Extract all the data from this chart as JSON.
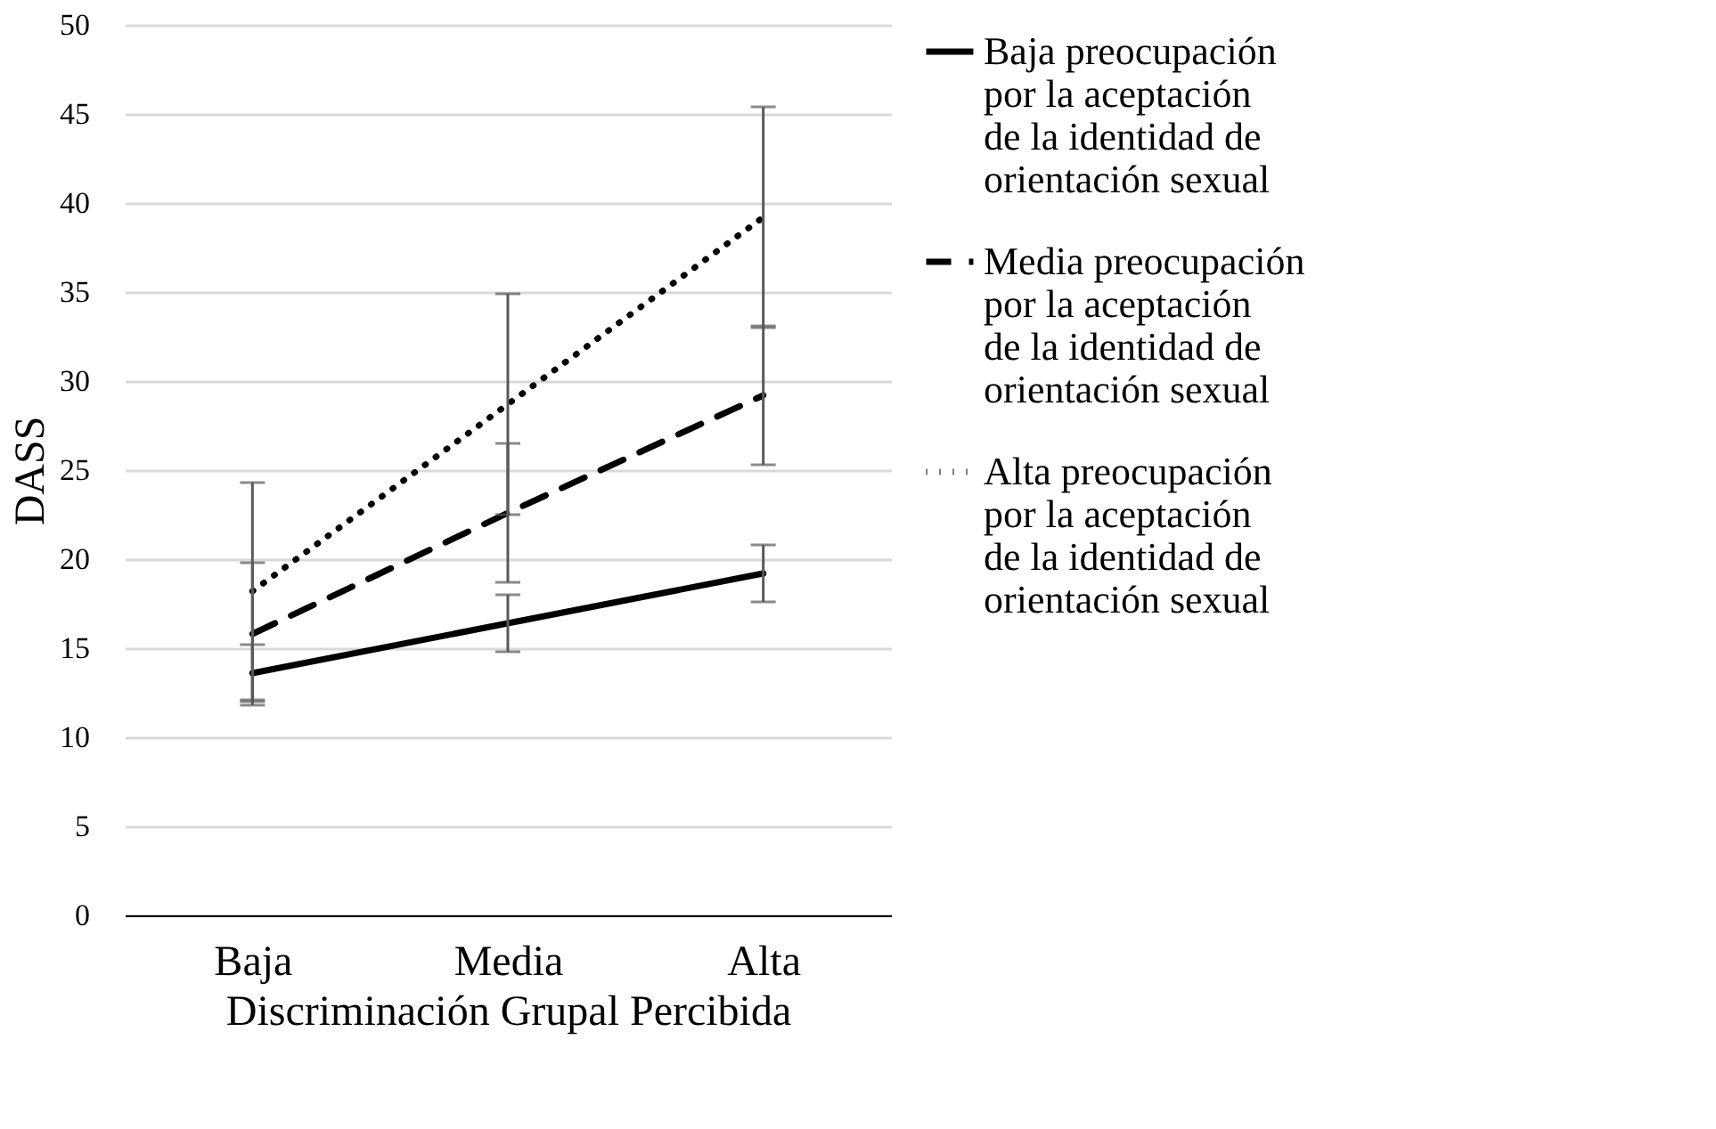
{
  "chart_data": {
    "type": "line",
    "xlabel": "Discriminación Grupal Percibida",
    "ylabel": "DASS",
    "categories": [
      "Baja",
      "Media",
      "Alta"
    ],
    "ylim": [
      0,
      50
    ],
    "yticks": [
      0,
      5,
      10,
      15,
      20,
      25,
      30,
      35,
      40,
      45,
      50
    ],
    "grid": "y",
    "legend": "right",
    "series": [
      {
        "name": "Baja preocupación por la aceptación de la identidad de orientación sexual",
        "color": "#000000",
        "line_style": "solid",
        "values": [
          13.6,
          16.4,
          19.2
        ],
        "errors": [
          1.6,
          1.6,
          1.6
        ]
      },
      {
        "name": "Media preocupación por la aceptación de la identidad de orientación sexual",
        "color": "#000000",
        "line_style": "dashed",
        "values": [
          15.8,
          22.6,
          29.2
        ],
        "errors": [
          4.0,
          3.9,
          3.9
        ]
      },
      {
        "name": "Alta preocupación por la aceptación de la identidad de orientación sexual",
        "color": "#000000",
        "line_style": "dotted",
        "values": [
          18.2,
          28.7,
          39.2
        ],
        "errors": [
          6.1,
          6.2,
          6.2
        ]
      }
    ]
  }
}
